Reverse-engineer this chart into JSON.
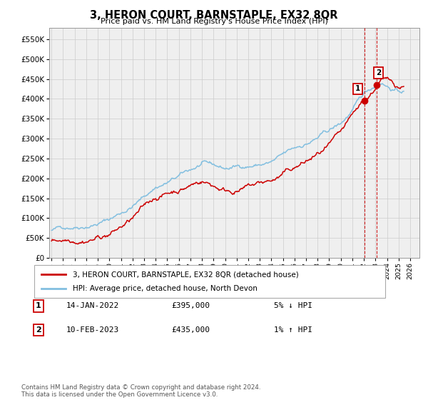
{
  "title": "3, HERON COURT, BARNSTAPLE, EX32 8QR",
  "subtitle": "Price paid vs. HM Land Registry's House Price Index (HPI)",
  "ytick_values": [
    0,
    50000,
    100000,
    150000,
    200000,
    250000,
    300000,
    350000,
    400000,
    450000,
    500000,
    550000
  ],
  "ylim": [
    0,
    578000
  ],
  "xlim_start": 1994.8,
  "xlim_end": 2026.8,
  "hpi_color": "#82bfe0",
  "price_color": "#cc0000",
  "grid_color": "#cccccc",
  "bg_color": "#efefef",
  "legend_label_price": "3, HERON COURT, BARNSTAPLE, EX32 8QR (detached house)",
  "legend_label_hpi": "HPI: Average price, detached house, North Devon",
  "transaction1_num": "1",
  "transaction1_date": "14-JAN-2022",
  "transaction1_price": "£395,000",
  "transaction1_hpi": "5% ↓ HPI",
  "transaction2_num": "2",
  "transaction2_date": "10-FEB-2023",
  "transaction2_price": "£435,000",
  "transaction2_hpi": "1% ↑ HPI",
  "footnote": "Contains HM Land Registry data © Crown copyright and database right 2024.\nThis data is licensed under the Open Government Licence v3.0.",
  "marker1_x": 2022.04,
  "marker1_y": 395000,
  "marker2_x": 2023.12,
  "marker2_y": 435000,
  "vline1_x": 2022.04,
  "vline2_x": 2023.12,
  "seed": 42
}
